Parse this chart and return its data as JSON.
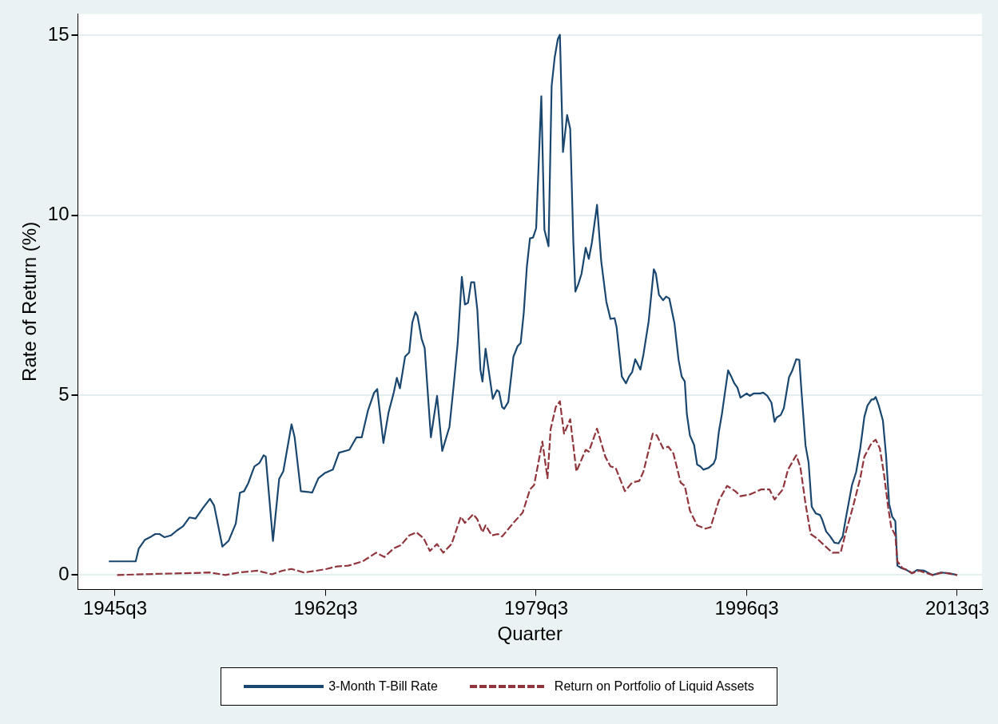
{
  "chart_data": {
    "type": "line",
    "xlabel": "Quarter",
    "ylabel": "Rate of Return (%)",
    "xlim": [
      "1942-07",
      "2015-07"
    ],
    "xticks": [
      {
        "value": "1945-07",
        "label": "1945q3"
      },
      {
        "value": "1962-07",
        "label": "1962q3"
      },
      {
        "value": "1979-07",
        "label": "1979q3"
      },
      {
        "value": "1996-07",
        "label": "1996q3"
      },
      {
        "value": "2013-07",
        "label": "2013q3"
      }
    ],
    "ylim": [
      -0.4,
      15.6
    ],
    "yticks": [
      0,
      5,
      10,
      15
    ],
    "grid": "y",
    "legend": "bottom",
    "marker": "none",
    "series": [
      {
        "name": "3-Month T-Bill Rate",
        "color": "#1a476f",
        "line_style": "solid",
        "x": [
          "1945-01",
          "1947-03",
          "1947-06",
          "1947-12",
          "1948-06",
          "1948-10",
          "1949-02",
          "1949-07",
          "1950-01",
          "1950-07",
          "1951-01",
          "1951-07",
          "1952-01",
          "1952-08",
          "1953-03",
          "1953-07",
          "1954-03",
          "1954-09",
          "1955-04",
          "1955-08",
          "1955-12",
          "1956-04",
          "1956-10",
          "1957-03",
          "1957-07",
          "1957-09",
          "1958-04",
          "1958-10",
          "1959-02",
          "1959-10",
          "1960-01",
          "1960-07",
          "1961-02",
          "1961-06",
          "1961-12",
          "1962-06",
          "1963-02",
          "1963-08",
          "1964-06",
          "1965-01",
          "1965-06",
          "1965-12",
          "1966-06",
          "1966-09",
          "1967-03",
          "1967-08",
          "1968-01",
          "1968-04",
          "1968-07",
          "1968-12",
          "1969-04",
          "1969-07",
          "1969-10",
          "1969-12",
          "1970-04",
          "1970-07",
          "1971-01",
          "1971-07",
          "1971-12",
          "1972-07",
          "1972-11",
          "1973-03",
          "1973-07",
          "1973-10",
          "1974-01",
          "1974-04",
          "1974-07",
          "1974-10",
          "1975-01",
          "1975-03",
          "1975-06",
          "1976-01",
          "1976-05",
          "1976-07",
          "1976-10",
          "1976-12",
          "1977-04",
          "1977-09",
          "1978-01",
          "1978-04",
          "1978-07",
          "1978-10",
          "1979-01",
          "1979-04",
          "1979-07",
          "1979-12",
          "1980-03",
          "1980-07",
          "1980-10",
          "1981-01",
          "1981-04",
          "1981-06",
          "1981-09",
          "1982-01",
          "1982-04",
          "1982-07",
          "1982-09",
          "1982-12",
          "1983-03",
          "1983-07",
          "1983-10",
          "1984-01",
          "1984-06",
          "1984-10",
          "1985-03",
          "1985-07",
          "1985-11",
          "1986-01",
          "1986-06",
          "1986-10",
          "1987-01",
          "1987-04",
          "1987-07",
          "1987-12",
          "1988-03",
          "1988-08",
          "1989-01",
          "1989-03",
          "1989-06",
          "1989-10",
          "1990-01",
          "1990-04",
          "1990-09",
          "1991-01",
          "1991-04",
          "1991-07",
          "1991-09",
          "1991-12",
          "1992-04",
          "1992-07",
          "1992-10",
          "1993-01",
          "1993-06",
          "1993-11",
          "1994-01",
          "1994-04",
          "1994-07",
          "1995-01",
          "1995-04",
          "1995-07",
          "1995-10",
          "1996-01",
          "1996-07",
          "1996-10",
          "1997-02",
          "1997-08",
          "1997-11",
          "1998-03",
          "1998-07",
          "1998-10",
          "1998-12",
          "1999-04",
          "1999-07",
          "1999-12",
          "2000-03",
          "2000-07",
          "2000-10",
          "2000-12",
          "2001-04",
          "2001-07",
          "2001-10",
          "2002-02",
          "2002-06",
          "2002-08",
          "2002-12",
          "2003-04",
          "2003-08",
          "2003-12",
          "2004-04",
          "2004-07",
          "2005-01",
          "2005-05",
          "2005-09",
          "2006-01",
          "2006-04",
          "2006-08",
          "2006-10",
          "2006-12",
          "2007-03",
          "2007-07",
          "2007-10",
          "2008-01",
          "2008-04",
          "2008-07",
          "2008-09",
          "2009-01",
          "2009-06",
          "2009-11",
          "2010-04",
          "2010-11",
          "2011-07",
          "2012-03",
          "2012-11",
          "2013-07"
        ],
        "values": [
          0.38,
          0.38,
          0.74,
          0.98,
          1.07,
          1.14,
          1.14,
          1.05,
          1.1,
          1.24,
          1.36,
          1.6,
          1.57,
          1.86,
          2.12,
          1.93,
          0.79,
          0.95,
          1.43,
          2.29,
          2.33,
          2.55,
          3.02,
          3.12,
          3.33,
          3.29,
          0.95,
          2.67,
          2.88,
          4.19,
          3.83,
          2.33,
          2.31,
          2.29,
          2.69,
          2.83,
          2.93,
          3.4,
          3.48,
          3.83,
          3.83,
          4.57,
          5.07,
          5.17,
          3.67,
          4.52,
          5.07,
          5.48,
          5.19,
          6.07,
          6.19,
          7.02,
          7.31,
          7.21,
          6.57,
          6.31,
          3.83,
          4.98,
          3.45,
          4.12,
          5.24,
          6.45,
          8.29,
          7.52,
          7.57,
          8.14,
          8.14,
          7.38,
          5.71,
          5.38,
          6.29,
          4.9,
          5.14,
          5.1,
          4.67,
          4.62,
          4.81,
          6.07,
          6.36,
          6.45,
          7.29,
          8.57,
          9.36,
          9.38,
          9.64,
          13.31,
          9.6,
          9.14,
          13.6,
          14.4,
          14.9,
          15.02,
          11.76,
          12.79,
          12.4,
          9.29,
          7.88,
          8.1,
          8.38,
          9.1,
          8.79,
          9.24,
          10.29,
          8.74,
          7.6,
          7.12,
          7.14,
          6.88,
          5.52,
          5.33,
          5.52,
          5.64,
          6.0,
          5.71,
          6.14,
          7.05,
          8.5,
          8.38,
          7.79,
          7.64,
          7.74,
          7.69,
          7.0,
          5.98,
          5.52,
          5.38,
          4.48,
          3.88,
          3.62,
          3.07,
          3.02,
          2.93,
          2.98,
          3.1,
          3.24,
          3.98,
          4.48,
          5.69,
          5.52,
          5.33,
          5.21,
          4.93,
          5.05,
          4.98,
          5.05,
          5.05,
          5.07,
          4.98,
          4.79,
          4.26,
          4.38,
          4.45,
          4.64,
          5.5,
          5.67,
          6.0,
          5.98,
          5.14,
          3.6,
          3.12,
          1.9,
          1.71,
          1.67,
          1.55,
          1.21,
          1.07,
          0.9,
          0.88,
          1.07,
          1.57,
          2.5,
          2.86,
          3.52,
          4.4,
          4.71,
          4.88,
          4.88,
          4.95,
          4.71,
          4.29,
          3.33,
          1.98,
          1.62,
          1.5,
          0.26,
          0.19,
          0.14,
          0.05,
          0.14,
          0.12,
          0.0,
          0.07,
          0.05,
          0.0
        ]
      },
      {
        "name": "Return on Portfolio of Liquid Assets",
        "color": "#90353b",
        "line_style": "dashed",
        "x": [
          "1945-09",
          "1948-08",
          "1951-03",
          "1953-03",
          "1954-06",
          "1955-07",
          "1957-01",
          "1958-03",
          "1959-01",
          "1959-10",
          "1960-10",
          "1961-10",
          "1962-08",
          "1963-06",
          "1964-05",
          "1965-07",
          "1966-08",
          "1967-04",
          "1968-01",
          "1968-08",
          "1969-04",
          "1969-11",
          "1970-06",
          "1970-12",
          "1971-07",
          "1972-01",
          "1972-09",
          "1973-06",
          "1973-10",
          "1974-06",
          "1974-10",
          "1975-03",
          "1975-06",
          "1975-12",
          "1976-06",
          "1976-10",
          "1977-09",
          "1978-06",
          "1979-01",
          "1979-05",
          "1979-09",
          "1980-01",
          "1980-06",
          "1980-09",
          "1981-02",
          "1981-06",
          "1981-10",
          "1982-04",
          "1982-10",
          "1983-07",
          "1983-10",
          "1984-06",
          "1985-02",
          "1985-07",
          "1985-12",
          "1986-09",
          "1987-04",
          "1987-11",
          "1988-03",
          "1988-12",
          "1989-04",
          "1989-10",
          "1990-03",
          "1990-08",
          "1991-03",
          "1991-07",
          "1991-12",
          "1992-07",
          "1993-03",
          "1993-08",
          "1994-04",
          "1994-12",
          "1995-08",
          "1996-01",
          "1996-10",
          "1997-09",
          "1998-05",
          "1998-10",
          "1999-06",
          "1999-11",
          "2000-07",
          "2000-11",
          "2001-04",
          "2001-09",
          "2002-03",
          "2002-10",
          "2003-06",
          "2004-02",
          "2004-07",
          "2005-02",
          "2005-09",
          "2006-01",
          "2006-08",
          "2006-12",
          "2007-04",
          "2007-08",
          "2007-12",
          "2008-03",
          "2008-07",
          "2008-09",
          "2009-02",
          "2009-08",
          "2009-11",
          "2010-06",
          "2011-07",
          "2012-05",
          "2013-07"
        ],
        "values": [
          0.0,
          0.03,
          0.05,
          0.07,
          0.0,
          0.07,
          0.12,
          0.02,
          0.12,
          0.17,
          0.07,
          0.12,
          0.17,
          0.24,
          0.26,
          0.38,
          0.62,
          0.5,
          0.74,
          0.83,
          1.1,
          1.19,
          1.02,
          0.67,
          0.86,
          0.62,
          0.86,
          1.62,
          1.45,
          1.69,
          1.55,
          1.19,
          1.38,
          1.1,
          1.14,
          1.07,
          1.45,
          1.74,
          2.38,
          2.5,
          3.1,
          3.71,
          2.69,
          4.05,
          4.67,
          4.83,
          3.93,
          4.33,
          2.88,
          3.48,
          3.43,
          4.07,
          3.29,
          3.02,
          2.98,
          2.33,
          2.57,
          2.62,
          2.88,
          3.93,
          3.88,
          3.52,
          3.57,
          3.38,
          2.57,
          2.48,
          1.79,
          1.38,
          1.29,
          1.33,
          2.07,
          2.48,
          2.33,
          2.19,
          2.24,
          2.38,
          2.38,
          2.1,
          2.38,
          2.93,
          3.33,
          3.0,
          1.98,
          1.14,
          1.02,
          0.83,
          0.62,
          0.62,
          1.19,
          1.9,
          2.69,
          3.29,
          3.67,
          3.76,
          3.52,
          2.81,
          1.9,
          1.33,
          1.1,
          0.38,
          0.19,
          0.12,
          0.05,
          0.12,
          0.0,
          0.07,
          0.0
        ]
      }
    ]
  }
}
